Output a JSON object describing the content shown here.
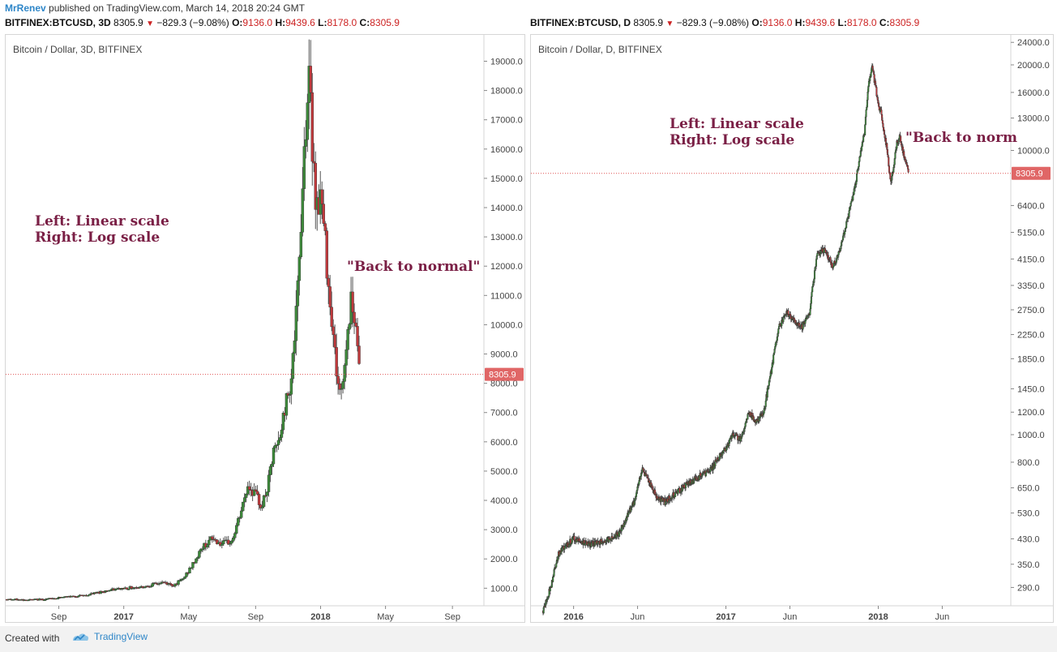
{
  "header": {
    "author": "MrRenev",
    "published": "published on TradingView.com, March 14, 2018 20:24 GMT"
  },
  "left": {
    "ohlc": {
      "symbol": "BITFINEX:BTCUSD, 3D",
      "last": "8305.9",
      "change": "−829.3 (−9.08%)",
      "o_label": "O:",
      "o": "9136.0",
      "h_label": "H:",
      "h": "9439.6",
      "l_label": "L:",
      "l": "8178.0",
      "c_label": "C:",
      "c": "8305.9"
    },
    "title": "Bitcoin / Dollar, 3D, BITFINEX",
    "annotation_line1": "Left: Linear scale",
    "annotation_line2": "Right: Log scale",
    "annotation_quote": "\"Back to normal\"",
    "price_label": "8305.9"
  },
  "right": {
    "ohlc": {
      "symbol": "BITFINEX:BTCUSD, D",
      "last": "8305.9",
      "change": "−829.3 (−9.08%)",
      "o_label": "O:",
      "o": "9136.0",
      "h_label": "H:",
      "h": "9439.6",
      "l_label": "L:",
      "l": "8178.0",
      "c_label": "C:",
      "c": "8305.9"
    },
    "title": "Bitcoin / Dollar, D, BITFINEX",
    "annotation_line1": "Left: Linear scale",
    "annotation_line2": "Right: Log scale",
    "annotation_quote": "\"Back to norm",
    "price_label": "8305.9"
  },
  "footer": {
    "created_with": "Created with",
    "brand": "TradingView"
  },
  "colors": {
    "up": "#3d8a3a",
    "down": "#c0393c",
    "wick": "#555555",
    "annotation": "#7a1f45",
    "price_line": "#e05555",
    "accent": "#2e86c8"
  },
  "chart_data": [
    {
      "type": "candlestick",
      "title": "Bitcoin / Dollar, 3D, BITFINEX",
      "scale": "linear",
      "xlabels": [
        "Sep",
        "2017",
        "May",
        "Sep",
        "2018",
        "May",
        "Sep"
      ],
      "xlabel_times": [
        2016.67,
        2017.0,
        2017.33,
        2017.67,
        2018.0,
        2018.33,
        2018.67
      ],
      "xlim": [
        2016.4,
        2018.83
      ],
      "ylim": [
        400,
        19900
      ],
      "yticks": [
        1000,
        2000,
        3000,
        4000,
        5000,
        6000,
        7000,
        8000,
        9000,
        10000,
        11000,
        12000,
        13000,
        14000,
        15000,
        16000,
        17000,
        18000,
        19000
      ],
      "ytick_labels": [
        "1000.0",
        "2000.0",
        "3000.0",
        "4000.0",
        "5000.0",
        "6000.0",
        "7000.0",
        "8000.0",
        "9000.0",
        "10000.0",
        "11000.0",
        "12000.0",
        "13000.0",
        "14000.0",
        "15000.0",
        "16000.0",
        "17000.0",
        "18000.0",
        "19000.0"
      ],
      "last_price": 8305.9,
      "series": {
        "t": [
          2016.4,
          2016.5,
          2016.6,
          2016.7,
          2016.8,
          2016.9,
          2017.0,
          2017.1,
          2017.2,
          2017.25,
          2017.3,
          2017.35,
          2017.4,
          2017.45,
          2017.5,
          2017.55,
          2017.6,
          2017.63,
          2017.66,
          2017.7,
          2017.73,
          2017.76,
          2017.79,
          2017.82,
          2017.85,
          2017.88,
          2017.9,
          2017.92,
          2017.94,
          2017.96,
          2017.98,
          2018.0,
          2018.02,
          2018.04,
          2018.06,
          2018.08,
          2018.1,
          2018.12,
          2018.14,
          2018.16,
          2018.18,
          2018.2
        ],
        "close": [
          620,
          600,
          620,
          700,
          750,
          900,
          1000,
          1050,
          1200,
          1100,
          1300,
          1800,
          2400,
          2700,
          2500,
          2600,
          3700,
          4500,
          4300,
          3800,
          4400,
          5600,
          6000,
          7200,
          8200,
          10500,
          13500,
          16500,
          18500,
          16000,
          14000,
          14500,
          13000,
          11500,
          10000,
          8500,
          7500,
          8500,
          10000,
          11000,
          10000,
          8300
        ]
      }
    },
    {
      "type": "candlestick",
      "title": "Bitcoin / Dollar, D, BITFINEX",
      "scale": "log",
      "xlabels": [
        "2016",
        "Jun",
        "2017",
        "Jun",
        "2018",
        "Jun"
      ],
      "xlabel_times": [
        2016.0,
        2016.42,
        2017.0,
        2017.42,
        2018.0,
        2018.42
      ],
      "xlim": [
        2015.72,
        2018.87
      ],
      "ylim": [
        250,
        25500
      ],
      "yticks": [
        290,
        350,
        430,
        530,
        650,
        800,
        1000,
        1200,
        1450,
        1850,
        2250,
        2750,
        3350,
        4150,
        5150,
        6400,
        10000,
        13000,
        16000,
        20000,
        24000
      ],
      "ytick_labels": [
        "290.0",
        "350.0",
        "430.0",
        "530.0",
        "650.0",
        "800.0",
        "1000.0",
        "1200.0",
        "1450.0",
        "1850.0",
        "2250.0",
        "2750.0",
        "3350.0",
        "4150.0",
        "5150.0",
        "6400.0",
        "10000.0",
        "13000.0",
        "16000.0",
        "20000.0",
        "24000.0"
      ],
      "last_price": 8305.9,
      "series": {
        "t": [
          2015.8,
          2015.85,
          2015.9,
          2016.0,
          2016.1,
          2016.2,
          2016.3,
          2016.4,
          2016.45,
          2016.5,
          2016.55,
          2016.6,
          2016.7,
          2016.8,
          2016.9,
          2017.0,
          2017.05,
          2017.1,
          2017.15,
          2017.2,
          2017.25,
          2017.3,
          2017.35,
          2017.4,
          2017.45,
          2017.5,
          2017.55,
          2017.6,
          2017.65,
          2017.7,
          2017.75,
          2017.8,
          2017.85,
          2017.88,
          2017.91,
          2017.94,
          2017.96,
          2017.98,
          2018.0,
          2018.02,
          2018.04,
          2018.06,
          2018.08,
          2018.1,
          2018.12,
          2018.14,
          2018.16,
          2018.2
        ],
        "close": [
          240,
          290,
          380,
          430,
          410,
          420,
          450,
          580,
          760,
          670,
          600,
          580,
          640,
          700,
          750,
          900,
          1000,
          960,
          1200,
          1100,
          1200,
          1700,
          2400,
          2700,
          2500,
          2400,
          2700,
          4300,
          4500,
          3900,
          4400,
          5800,
          7500,
          9500,
          11500,
          17500,
          19500,
          17000,
          14500,
          13500,
          11500,
          9800,
          7700,
          8500,
          10500,
          11200,
          10000,
          8300
        ]
      }
    }
  ]
}
